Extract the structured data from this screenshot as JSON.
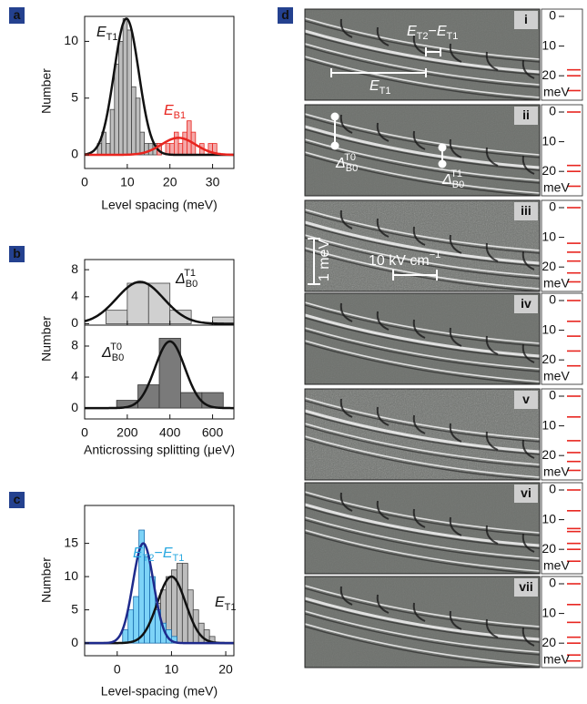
{
  "chart_data": [
    {
      "type": "histogram",
      "panel": "a",
      "xlabel": "Level spacing (meV)",
      "ylabel": "Number",
      "xlim": [
        0,
        35
      ],
      "xticks": [
        0,
        10,
        20,
        30
      ],
      "ylim": [
        -1.2,
        12.2
      ],
      "yticks": [
        0,
        5,
        10
      ],
      "series": [
        {
          "color": "#bdbdbd",
          "edge": "#444444",
          "bins": [
            3,
            4,
            5,
            6,
            7,
            8,
            9,
            10,
            11,
            12,
            13,
            14,
            15,
            16,
            17,
            18
          ],
          "values": [
            1,
            2,
            1,
            4,
            8,
            10,
            12,
            11,
            6,
            5,
            2,
            1,
            1,
            1,
            1
          ],
          "fit": {
            "amplitude": 12,
            "mean": 9.8,
            "sigma": 2.9
          },
          "fit_color": "#111111"
        },
        {
          "color": "#f4a8a8",
          "edge": "#e8251f",
          "bins": [
            17,
            18,
            19,
            20,
            21,
            22,
            23,
            24,
            25,
            26,
            27,
            28,
            29,
            30,
            31
          ],
          "values": [
            1,
            0,
            1,
            1,
            2,
            1,
            2,
            3,
            2,
            0,
            1,
            0,
            1,
            1
          ],
          "fit": {
            "amplitude": 1.5,
            "mean": 22,
            "sigma": 4
          },
          "fit_color": "#e8251f"
        }
      ],
      "annotations": [
        {
          "parts": [
            {
              "text": "E"
            },
            {
              "sub": "T1"
            }
          ],
          "color": "#111111"
        },
        {
          "parts": [
            {
              "text": "E"
            },
            {
              "sub": "B1"
            }
          ],
          "color": "#e8251f"
        }
      ]
    },
    {
      "type": "histogram",
      "panel": "b",
      "ylabel": "Number",
      "xlim": [
        0,
        700
      ],
      "ylim": [
        -0.2,
        9.5
      ],
      "yticks": [
        0,
        4,
        8
      ],
      "series": [
        {
          "color": "#d0d0d0",
          "edge": "#444444",
          "bins": [
            100,
            200,
            300,
            400,
            500,
            600,
            700
          ],
          "values": [
            2,
            6,
            6,
            2,
            0,
            1
          ],
          "fit": {
            "amplitude": 6.2,
            "mean": 260,
            "sigma": 110
          },
          "fit_color": "#111111"
        }
      ],
      "annotations": [
        {
          "parts": [
            {
              "text": "Δ"
            },
            {
              "sub": "B0"
            },
            {
              "sup": "T1"
            }
          ],
          "color": "#111111"
        }
      ]
    },
    {
      "type": "histogram",
      "xlabel": "Anticrossing splitting (μeV)",
      "xlim": [
        0,
        700
      ],
      "xticks": [
        0,
        200,
        400,
        600
      ],
      "ylim": [
        -1.4,
        10.7
      ],
      "yticks": [
        0,
        4,
        8
      ],
      "series": [
        {
          "color": "#7a7a7a",
          "edge": "#333333",
          "bins": [
            150,
            250,
            350,
            450,
            550,
            650
          ],
          "values": [
            1,
            3,
            9,
            2,
            2
          ],
          "fit": {
            "amplitude": 8.6,
            "mean": 400,
            "sigma": 70
          },
          "fit_color": "#111111"
        }
      ],
      "annotations": [
        {
          "parts": [
            {
              "text": "Δ"
            },
            {
              "sub": "B0"
            },
            {
              "sup": "T0"
            }
          ],
          "color": "#111111"
        }
      ]
    },
    {
      "type": "histogram",
      "panel": "c",
      "xlabel": "Level-spacing (meV)",
      "ylabel": "Number",
      "xlim": [
        -6,
        21.5
      ],
      "xticks": [
        0,
        10,
        20
      ],
      "ylim": [
        -1.9,
        20.7
      ],
      "yticks": [
        0,
        5,
        10,
        15
      ],
      "series": [
        {
          "color": "#bdbdbd",
          "edge": "#444444",
          "bins": [
            3,
            4,
            5,
            6,
            7,
            8,
            9,
            10,
            11,
            12,
            13,
            14,
            15,
            16,
            17,
            18
          ],
          "values": [
            1,
            1,
            3,
            5,
            6,
            8,
            10,
            11,
            12,
            12,
            8,
            5,
            3,
            2,
            1
          ],
          "fit": {
            "amplitude": 10,
            "mean": 10,
            "sigma": 2.6
          },
          "fit_color": "#111111"
        },
        {
          "color": "#7dd3f7",
          "edge": "#1b6fb0",
          "bins": [
            1,
            2,
            3,
            4,
            5,
            6,
            7,
            8,
            9,
            10,
            11
          ],
          "values": [
            2,
            5,
            7,
            17,
            13,
            10,
            5,
            3,
            2,
            1
          ],
          "fit": {
            "amplitude": 15,
            "mean": 4.8,
            "sigma": 1.9
          },
          "fit_color": "#1e2a8c"
        }
      ],
      "annotations": [
        {
          "parts": [
            {
              "text": "E"
            },
            {
              "sub": "T2"
            },
            {
              "text": "−"
            },
            {
              "text": "E"
            },
            {
              "sub": "T1"
            }
          ],
          "color": "#29a8e0"
        },
        {
          "parts": [
            {
              "text": "E"
            },
            {
              "sub": "T1"
            }
          ],
          "color": "#111111"
        }
      ]
    },
    {
      "type": "levels",
      "panel": "d",
      "label": "i",
      "ylabel": "meV",
      "ylim": [
        0,
        27
      ],
      "yticks": [
        0,
        10,
        20
      ],
      "values": [
        18,
        20,
        25
      ],
      "color": "#e8251f",
      "annotations": [
        {
          "parts": [
            {
              "text": "E"
            },
            {
              "sub": "T2"
            },
            {
              "text": "−"
            },
            {
              "text": "E"
            },
            {
              "sub": "T1"
            }
          ],
          "color": "#ffffff"
        },
        {
          "parts": [
            {
              "text": "E"
            },
            {
              "sub": "T1"
            }
          ],
          "color": "#ffffff"
        }
      ]
    },
    {
      "type": "levels",
      "label": "ii",
      "ylabel": "meV",
      "ylim": [
        0,
        27
      ],
      "yticks": [
        0,
        10,
        20
      ],
      "values": [
        0,
        18,
        20,
        25
      ],
      "color": "#e8251f",
      "annotations": [
        {
          "parts": [
            {
              "text": "Δ"
            },
            {
              "sub": "B0"
            },
            {
              "sup": "T0"
            }
          ],
          "color": "#ffffff"
        },
        {
          "parts": [
            {
              "text": "Δ"
            },
            {
              "sub": "B0"
            },
            {
              "sup": "T1"
            }
          ],
          "color": "#ffffff"
        }
      ]
    },
    {
      "type": "levels",
      "label": "iii",
      "ylabel": "meV",
      "ylim": [
        0,
        27
      ],
      "yticks": [
        0,
        10,
        20
      ],
      "values": [
        0,
        12,
        15,
        18,
        22,
        25
      ],
      "color": "#e8251f",
      "annotations": [
        {
          "parts": [
            {
              "text": "1 meV"
            }
          ],
          "color": "#ffffff"
        },
        {
          "parts": [
            {
              "text": "10 kV cm"
            },
            {
              "sup": "−1"
            }
          ],
          "color": "#ffffff"
        }
      ]
    },
    {
      "type": "levels",
      "label": "iv",
      "ylabel": "meV",
      "ylim": [
        0,
        27
      ],
      "yticks": [
        0,
        10,
        20
      ],
      "values": [
        0,
        7,
        12,
        17,
        22
      ],
      "color": "#e8251f"
    },
    {
      "type": "levels",
      "label": "v",
      "ylabel": "meV",
      "ylim": [
        0,
        27
      ],
      "yticks": [
        0,
        10,
        20
      ],
      "values": [
        0,
        7,
        15,
        19,
        22,
        25
      ],
      "color": "#e8251f"
    },
    {
      "type": "levels",
      "label": "vi",
      "ylabel": "meV",
      "ylim": [
        0,
        27
      ],
      "yticks": [
        0,
        10,
        20
      ],
      "values": [
        0,
        7,
        13,
        14,
        18,
        20,
        24
      ],
      "color": "#e8251f"
    },
    {
      "type": "levels",
      "label": "vii",
      "ylabel": "meV",
      "ylim": [
        0,
        27
      ],
      "yticks": [
        0,
        10,
        20
      ],
      "values": [
        0,
        7,
        13,
        18,
        20,
        24,
        26
      ],
      "color": "#e8251f"
    }
  ]
}
